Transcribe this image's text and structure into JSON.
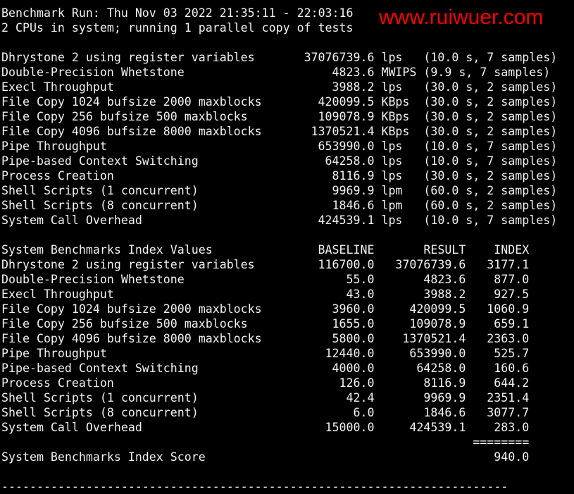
{
  "header": {
    "run_line": "Benchmark Run: Thu Nov 03 2022 21:35:11 - 22:03:16",
    "cpu_line": "2 CPUs in system; running 1 parallel copy of tests"
  },
  "results": [
    {
      "name": "Dhrystone 2 using register variables",
      "value": "37076739.6",
      "unit": "lps",
      "detail": "(10.0 s, 7 samples)"
    },
    {
      "name": "Double-Precision Whetstone",
      "value": "4823.6",
      "unit": "MWIPS",
      "detail": "(9.9 s, 7 samples)"
    },
    {
      "name": "Execl Throughput",
      "value": "3988.2",
      "unit": "lps",
      "detail": "(30.0 s, 2 samples)"
    },
    {
      "name": "File Copy 1024 bufsize 2000 maxblocks",
      "value": "420099.5",
      "unit": "KBps",
      "detail": "(30.0 s, 2 samples)"
    },
    {
      "name": "File Copy 256 bufsize 500 maxblocks",
      "value": "109078.9",
      "unit": "KBps",
      "detail": "(30.0 s, 2 samples)"
    },
    {
      "name": "File Copy 4096 bufsize 8000 maxblocks",
      "value": "1370521.4",
      "unit": "KBps",
      "detail": "(30.0 s, 2 samples)"
    },
    {
      "name": "Pipe Throughput",
      "value": "653990.0",
      "unit": "lps",
      "detail": "(10.0 s, 7 samples)"
    },
    {
      "name": "Pipe-based Context Switching",
      "value": "64258.0",
      "unit": "lps",
      "detail": "(10.0 s, 7 samples)"
    },
    {
      "name": "Process Creation",
      "value": "8116.9",
      "unit": "lps",
      "detail": "(30.0 s, 2 samples)"
    },
    {
      "name": "Shell Scripts (1 concurrent)",
      "value": "9969.9",
      "unit": "lpm",
      "detail": "(60.0 s, 2 samples)"
    },
    {
      "name": "Shell Scripts (8 concurrent)",
      "value": "1846.6",
      "unit": "lpm",
      "detail": "(60.0 s, 2 samples)"
    },
    {
      "name": "System Call Overhead",
      "value": "424539.1",
      "unit": "lps",
      "detail": "(10.0 s, 7 samples)"
    }
  ],
  "index": {
    "title": "System Benchmarks Index Values",
    "headers": {
      "baseline": "BASELINE",
      "result": "RESULT",
      "index": "INDEX"
    },
    "rows": [
      {
        "name": "Dhrystone 2 using register variables",
        "baseline": "116700.0",
        "result": "37076739.6",
        "index": "3177.1"
      },
      {
        "name": "Double-Precision Whetstone",
        "baseline": "55.0",
        "result": "4823.6",
        "index": "877.0"
      },
      {
        "name": "Execl Throughput",
        "baseline": "43.0",
        "result": "3988.2",
        "index": "927.5"
      },
      {
        "name": "File Copy 1024 bufsize 2000 maxblocks",
        "baseline": "3960.0",
        "result": "420099.5",
        "index": "1060.9"
      },
      {
        "name": "File Copy 256 bufsize 500 maxblocks",
        "baseline": "1655.0",
        "result": "109078.9",
        "index": "659.1"
      },
      {
        "name": "File Copy 4096 bufsize 8000 maxblocks",
        "baseline": "5800.0",
        "result": "1370521.4",
        "index": "2363.0"
      },
      {
        "name": "Pipe Throughput",
        "baseline": "12440.0",
        "result": "653990.0",
        "index": "525.7"
      },
      {
        "name": "Pipe-based Context Switching",
        "baseline": "4000.0",
        "result": "64258.0",
        "index": "160.6"
      },
      {
        "name": "Process Creation",
        "baseline": "126.0",
        "result": "8116.9",
        "index": "644.2"
      },
      {
        "name": "Shell Scripts (1 concurrent)",
        "baseline": "42.4",
        "result": "9969.9",
        "index": "2351.4"
      },
      {
        "name": "Shell Scripts (8 concurrent)",
        "baseline": "6.0",
        "result": "1846.6",
        "index": "3077.7"
      },
      {
        "name": "System Call Overhead",
        "baseline": "15000.0",
        "result": "424539.1",
        "index": "283.0"
      }
    ],
    "separator": "========",
    "score_label": "System Benchmarks Index Score",
    "score": "940.0"
  },
  "footer_rule": "------------------------------------------------------------------------",
  "watermark": "www.ruiwuer.com",
  "colors": {
    "background": "#000000",
    "text": "#f2f2f2",
    "watermark": "#ff0000"
  }
}
